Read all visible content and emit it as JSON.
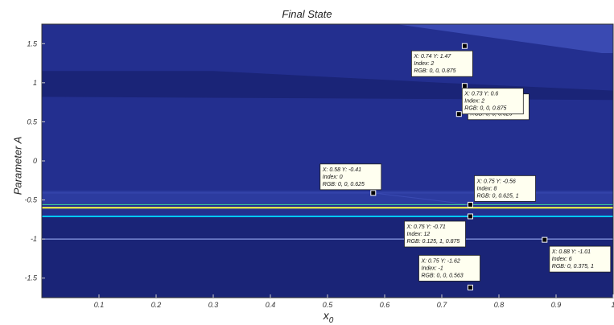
{
  "chart_data": {
    "type": "heatmap",
    "title": "Final State",
    "xlabel": "x",
    "xlabel_sub": "0",
    "ylabel": "Parameter A",
    "xlim": [
      0,
      1
    ],
    "ylim": [
      -1.75,
      1.75
    ],
    "xticks": [
      "0.1",
      "0.2",
      "0.3",
      "0.4",
      "0.5",
      "0.6",
      "0.7",
      "0.8",
      "0.9",
      "1"
    ],
    "yticks": [
      "1.5",
      "1",
      "0.5",
      "0",
      "-0.5",
      "-1",
      "-1.5"
    ],
    "colors": {
      "base": "#232f8f",
      "dark": "#1a2477",
      "light_band": "#3a4ab2",
      "mid": "#2c3b9f",
      "cyan": "#00c8ff",
      "yellow": "#ffff40",
      "white_line": "#a8b8ff"
    },
    "regions": [
      {
        "name": "upper-light-wedge",
        "x": [
          0.65,
          1.0
        ],
        "y": [
          1.4,
          1.75
        ]
      },
      {
        "name": "upper-dark-band",
        "x": [
          0.0,
          1.0
        ],
        "y": [
          0.85,
          1.15
        ]
      },
      {
        "name": "lower-dark-region",
        "x": [
          0.0,
          1.0
        ],
        "y": [
          -1.75,
          -0.72
        ]
      }
    ],
    "lines": [
      {
        "name": "band-line-top",
        "y": -0.41,
        "color": "#3a4ab2"
      },
      {
        "name": "band-line-green",
        "y": -0.56,
        "color": "#40e0a0"
      },
      {
        "name": "band-line-yellow",
        "y": -0.6,
        "color": "#ffff40"
      },
      {
        "name": "band-line-cyan",
        "y": -0.71,
        "color": "#00c8ff"
      },
      {
        "name": "band-line-white",
        "y": -1.0,
        "color": "#a8b8ff"
      }
    ],
    "datatips": [
      {
        "x": 0.74,
        "y": 1.47,
        "lines": [
          "X: 0.74 Y: 1.47",
          "Index: 2",
          "RGB: 0, 0, 0.875"
        ]
      },
      {
        "x": 0.74,
        "y": 0.96,
        "lines": [
          "X: 0.74 Y: 0.96",
          "Index: 0",
          "RGB: 0, 0, 0.625"
        ]
      },
      {
        "x": 0.73,
        "y": 0.6,
        "lines": [
          "X: 0.73 Y: 0.6",
          "Index: 2",
          "RGB: 0, 0, 0.875"
        ]
      },
      {
        "x": 0.58,
        "y": -0.41,
        "lines": [
          "X: 0.58 Y: -0.41",
          "Index: 0",
          "RGB: 0, 0, 0.625"
        ]
      },
      {
        "x": 0.75,
        "y": -0.56,
        "lines": [
          "X: 0.75 Y: -0.56",
          "Index: 8",
          "RGB: 0, 0.625, 1"
        ]
      },
      {
        "x": 0.75,
        "y": -0.71,
        "lines": [
          "X: 0.75 Y: -0.71",
          "Index: 12",
          "RGB: 0.125, 1, 0.875"
        ]
      },
      {
        "x": 0.88,
        "y": -1.01,
        "lines": [
          "X: 0.88 Y: -1.01",
          "Index: 6",
          "RGB: 0, 0.375, 1"
        ]
      },
      {
        "x": 0.75,
        "y": -1.62,
        "lines": [
          "X: 0.75 Y: -1.62",
          "Index: -1",
          "RGB: 0, 0, 0.563"
        ]
      }
    ]
  }
}
